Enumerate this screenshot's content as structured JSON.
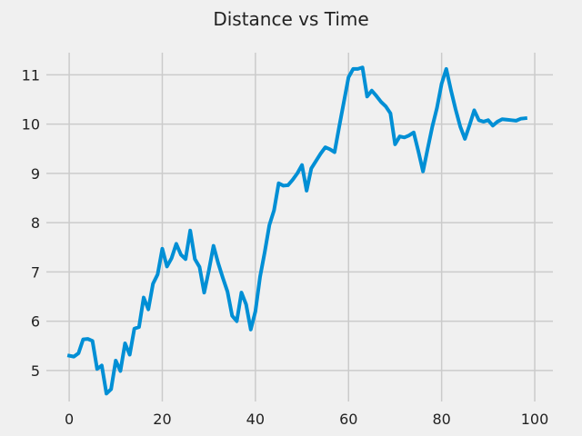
{
  "chart_data": {
    "type": "line",
    "title": "Distance vs Time",
    "xlabel": "",
    "ylabel": "",
    "xlim": [
      -4.9,
      103.9
    ],
    "ylim": [
      4.37,
      11.45
    ],
    "xticks": [
      0,
      20,
      40,
      60,
      80,
      100
    ],
    "yticks": [
      5,
      6,
      7,
      8,
      9,
      10,
      11
    ],
    "grid": true,
    "colors": {
      "background": "#f0f0f0",
      "grid": "#cbcbcb",
      "line": "#008fd5",
      "text": "#222222"
    },
    "series": [
      {
        "x": [
          0,
          1,
          2,
          3,
          4,
          5,
          6,
          7,
          8,
          9,
          10,
          11,
          12,
          13,
          14,
          15,
          16,
          17,
          18,
          19,
          20,
          21,
          22,
          23,
          24,
          25,
          26,
          27,
          28,
          29,
          30,
          31,
          32,
          33,
          34,
          35,
          36,
          37,
          38,
          39,
          40,
          41,
          42,
          43,
          44,
          45,
          46,
          47,
          48,
          49,
          50,
          51,
          52,
          53,
          54,
          55,
          56,
          57,
          58,
          59,
          60,
          61,
          62,
          63,
          64,
          65,
          66,
          67,
          68,
          69,
          70,
          71,
          72,
          73,
          74,
          75,
          76,
          77,
          78,
          79,
          80,
          81,
          82,
          83,
          84,
          85,
          86,
          87,
          88,
          89,
          90,
          91,
          92,
          93,
          94,
          95,
          96,
          97,
          98
        ],
        "y": [
          5.3,
          5.28,
          5.35,
          5.63,
          5.64,
          5.6,
          5.03,
          5.1,
          4.53,
          4.62,
          5.2,
          4.99,
          5.55,
          5.32,
          5.85,
          5.88,
          6.48,
          6.24,
          6.76,
          6.95,
          7.47,
          7.11,
          7.28,
          7.57,
          7.35,
          7.26,
          7.84,
          7.26,
          7.1,
          6.58,
          7.03,
          7.53,
          7.18,
          6.88,
          6.6,
          6.11,
          6.0,
          6.58,
          6.34,
          5.83,
          6.2,
          6.9,
          7.4,
          7.95,
          8.25,
          8.8,
          8.75,
          8.76,
          8.87,
          9.0,
          9.17,
          8.65,
          9.1,
          9.25,
          9.4,
          9.53,
          9.49,
          9.43,
          9.95,
          10.45,
          10.95,
          11.12,
          11.12,
          11.15,
          10.56,
          10.68,
          10.57,
          10.45,
          10.36,
          10.22,
          9.59,
          9.75,
          9.73,
          9.77,
          9.83,
          9.45,
          9.04,
          9.5,
          9.95,
          10.33,
          10.82,
          11.12,
          10.69,
          10.3,
          9.95,
          9.7,
          9.98,
          10.28,
          10.08,
          10.05,
          10.08,
          9.97,
          10.05,
          10.1,
          10.09,
          10.08,
          10.07,
          10.11,
          10.12
        ]
      }
    ]
  }
}
